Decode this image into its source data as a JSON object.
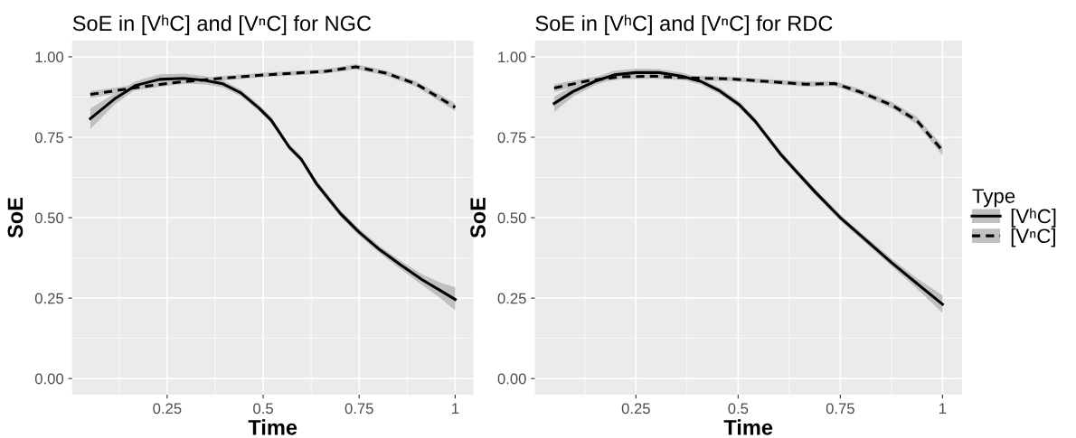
{
  "chart_data": [
    {
      "type": "line",
      "title": "SoE in [VʰC] and [VⁿC] for NGC",
      "xlabel": "Time",
      "ylabel": "SoE",
      "xlim": [
        0.0025,
        1.0475
      ],
      "xticks": [
        0.25,
        0.5,
        0.75,
        1
      ],
      "ylim": [
        -0.05,
        1.05
      ],
      "yticks": [
        {
          "value": 0,
          "label": "0.00"
        },
        {
          "value": 0.25,
          "label": "0.25"
        },
        {
          "value": 0.5,
          "label": "0.50"
        },
        {
          "value": 0.75,
          "label": "0.75"
        },
        {
          "value": 1,
          "label": "1.00"
        }
      ],
      "grid": true,
      "legend": false,
      "series": [
        {
          "color": "#000000",
          "line_style": "solid",
          "x": [
            0.05,
            0.113,
            0.168,
            0.23,
            0.293,
            0.348,
            0.395,
            0.442,
            0.489,
            0.521,
            0.568,
            0.599,
            0.638,
            0.701,
            0.748,
            0.803,
            0.857,
            0.914,
            0.961,
            1.0
          ],
          "values": [
            0.808,
            0.869,
            0.911,
            0.93,
            0.933,
            0.927,
            0.916,
            0.888,
            0.841,
            0.803,
            0.719,
            0.682,
            0.607,
            0.513,
            0.457,
            0.401,
            0.354,
            0.307,
            0.274,
            0.246
          ],
          "lower": [
            0.775,
            0.852,
            0.898,
            0.914,
            0.918,
            0.914,
            0.905,
            0.878,
            0.831,
            0.793,
            0.709,
            0.672,
            0.597,
            0.502,
            0.446,
            0.39,
            0.341,
            0.29,
            0.25,
            0.212
          ],
          "upper": [
            0.839,
            0.886,
            0.924,
            0.946,
            0.948,
            0.94,
            0.927,
            0.898,
            0.851,
            0.813,
            0.729,
            0.692,
            0.617,
            0.524,
            0.468,
            0.412,
            0.367,
            0.324,
            0.298,
            0.284
          ]
        },
        {
          "color": "#000000",
          "line_style": "dashed",
          "x": [
            0.05,
            0.191,
            0.27,
            0.388,
            0.506,
            0.663,
            0.741,
            0.82,
            0.898,
            1.0
          ],
          "values": [
            0.883,
            0.908,
            0.92,
            0.933,
            0.944,
            0.955,
            0.969,
            0.949,
            0.916,
            0.843
          ],
          "lower": [
            0.872,
            0.9,
            0.913,
            0.926,
            0.937,
            0.948,
            0.961,
            0.941,
            0.907,
            0.831
          ],
          "upper": [
            0.894,
            0.916,
            0.927,
            0.94,
            0.951,
            0.962,
            0.977,
            0.957,
            0.925,
            0.855
          ]
        }
      ]
    },
    {
      "type": "line",
      "title": "SoE in [VʰC] and [VⁿC] for RDC",
      "xlabel": "Time",
      "ylabel": "SoE",
      "legend_title": "Type",
      "xlim": [
        0.0025,
        1.0475
      ],
      "xticks": [
        0.25,
        0.5,
        0.75,
        1
      ],
      "ylim": [
        -0.05,
        1.05
      ],
      "yticks": [
        {
          "value": 0,
          "label": "0.00"
        },
        {
          "value": 0.25,
          "label": "0.25"
        },
        {
          "value": 0.5,
          "label": "0.50"
        },
        {
          "value": 0.75,
          "label": "0.75"
        },
        {
          "value": 1,
          "label": "1.00"
        }
      ],
      "grid": true,
      "legend": "right",
      "series": [
        {
          "name": "[VʰC]",
          "color": "#000000",
          "line_style": "solid",
          "x": [
            0.05,
            0.096,
            0.15,
            0.197,
            0.25,
            0.306,
            0.361,
            0.408,
            0.455,
            0.502,
            0.541,
            0.603,
            0.642,
            0.689,
            0.75,
            0.812,
            0.875,
            0.937,
            1.0
          ],
          "values": [
            0.855,
            0.892,
            0.924,
            0.944,
            0.951,
            0.951,
            0.94,
            0.924,
            0.894,
            0.852,
            0.801,
            0.699,
            0.644,
            0.579,
            0.5,
            0.431,
            0.361,
            0.296,
            0.231
          ],
          "lower": [
            0.829,
            0.876,
            0.912,
            0.932,
            0.94,
            0.94,
            0.93,
            0.914,
            0.884,
            0.842,
            0.791,
            0.689,
            0.634,
            0.569,
            0.49,
            0.421,
            0.349,
            0.28,
            0.204
          ],
          "upper": [
            0.877,
            0.908,
            0.936,
            0.957,
            0.963,
            0.962,
            0.951,
            0.934,
            0.904,
            0.862,
            0.811,
            0.709,
            0.654,
            0.589,
            0.51,
            0.441,
            0.373,
            0.312,
            0.259
          ]
        },
        {
          "name": "[VⁿC]",
          "color": "#000000",
          "line_style": "dashed",
          "x": [
            0.05,
            0.135,
            0.213,
            0.291,
            0.369,
            0.486,
            0.564,
            0.666,
            0.736,
            0.798,
            0.876,
            0.938,
            1.0
          ],
          "values": [
            0.903,
            0.926,
            0.938,
            0.94,
            0.935,
            0.931,
            0.924,
            0.915,
            0.917,
            0.891,
            0.85,
            0.801,
            0.708
          ],
          "lower": [
            0.891,
            0.917,
            0.93,
            0.932,
            0.928,
            0.924,
            0.917,
            0.907,
            0.909,
            0.882,
            0.84,
            0.789,
            0.693
          ],
          "upper": [
            0.915,
            0.935,
            0.946,
            0.948,
            0.942,
            0.938,
            0.931,
            0.923,
            0.925,
            0.9,
            0.86,
            0.813,
            0.723
          ]
        }
      ]
    }
  ]
}
